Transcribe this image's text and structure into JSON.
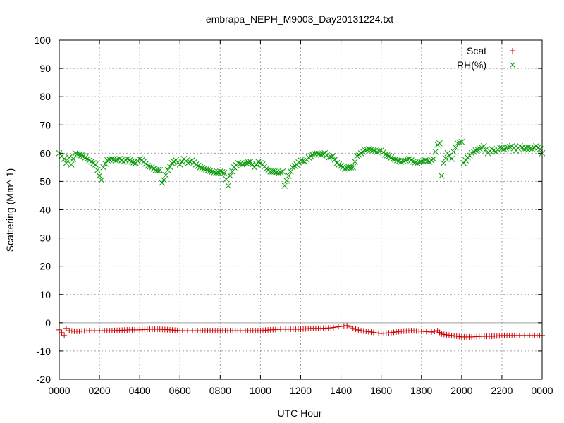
{
  "chart_data": {
    "type": "scatter",
    "title": "embrapa_NEPH_M9003_Day20131224.txt",
    "xlabel": "UTC Hour",
    "ylabel": "Scattering (Mm^-1)",
    "xlim": [
      0,
      24
    ],
    "ylim": [
      -20,
      100
    ],
    "x_unit": "hours",
    "xticks": [
      {
        "value": 0,
        "label": "0000"
      },
      {
        "value": 2,
        "label": "0200"
      },
      {
        "value": 4,
        "label": "0400"
      },
      {
        "value": 6,
        "label": "0600"
      },
      {
        "value": 8,
        "label": "0800"
      },
      {
        "value": 10,
        "label": "1000"
      },
      {
        "value": 12,
        "label": "1200"
      },
      {
        "value": 14,
        "label": "1400"
      },
      {
        "value": 16,
        "label": "1600"
      },
      {
        "value": 18,
        "label": "1800"
      },
      {
        "value": 20,
        "label": "2000"
      },
      {
        "value": 22,
        "label": "2200"
      },
      {
        "value": 24,
        "label": "0000"
      }
    ],
    "yticks": [
      {
        "value": -20,
        "label": "-20"
      },
      {
        "value": -10,
        "label": "-10"
      },
      {
        "value": 0,
        "label": "0"
      },
      {
        "value": 10,
        "label": "10"
      },
      {
        "value": 20,
        "label": "20"
      },
      {
        "value": 30,
        "label": "30"
      },
      {
        "value": 40,
        "label": "40"
      },
      {
        "value": 50,
        "label": "50"
      },
      {
        "value": 60,
        "label": "60"
      },
      {
        "value": 70,
        "label": "70"
      },
      {
        "value": 80,
        "label": "80"
      },
      {
        "value": 90,
        "label": "90"
      },
      {
        "value": 100,
        "label": "100"
      }
    ],
    "grid": true,
    "zero_line": true,
    "legend_position": "top-right",
    "series": [
      {
        "name": "Scat",
        "marker": "plus",
        "color": "#cc0000",
        "points": [
          [
            0.0,
            -2.5
          ],
          [
            0.25,
            -4.5
          ],
          [
            0.35,
            -2.0
          ],
          [
            0.5,
            -2.8
          ],
          [
            0.75,
            -3.0
          ],
          [
            1.0,
            -3.0
          ],
          [
            1.5,
            -2.8
          ],
          [
            2.0,
            -2.8
          ],
          [
            2.5,
            -2.8
          ],
          [
            3.0,
            -2.7
          ],
          [
            3.5,
            -2.5
          ],
          [
            4.0,
            -2.5
          ],
          [
            4.5,
            -2.3
          ],
          [
            5.0,
            -2.3
          ],
          [
            5.5,
            -2.5
          ],
          [
            6.0,
            -2.8
          ],
          [
            6.5,
            -2.8
          ],
          [
            7.0,
            -2.8
          ],
          [
            7.5,
            -2.8
          ],
          [
            8.0,
            -2.8
          ],
          [
            8.5,
            -2.8
          ],
          [
            9.0,
            -2.8
          ],
          [
            9.5,
            -2.8
          ],
          [
            10.0,
            -2.8
          ],
          [
            10.5,
            -2.5
          ],
          [
            11.0,
            -2.3
          ],
          [
            11.5,
            -2.3
          ],
          [
            12.0,
            -2.3
          ],
          [
            12.5,
            -2.0
          ],
          [
            13.0,
            -2.0
          ],
          [
            13.5,
            -1.8
          ],
          [
            14.0,
            -1.3
          ],
          [
            14.3,
            -1.0
          ],
          [
            14.6,
            -2.0
          ],
          [
            15.0,
            -2.8
          ],
          [
            15.5,
            -3.3
          ],
          [
            16.0,
            -3.8
          ],
          [
            16.5,
            -3.5
          ],
          [
            17.0,
            -3.0
          ],
          [
            17.5,
            -2.8
          ],
          [
            18.0,
            -3.0
          ],
          [
            18.5,
            -3.3
          ],
          [
            18.8,
            -2.8
          ],
          [
            19.0,
            -4.0
          ],
          [
            19.5,
            -4.5
          ],
          [
            20.0,
            -5.0
          ],
          [
            20.5,
            -5.0
          ],
          [
            21.0,
            -4.8
          ],
          [
            21.5,
            -4.8
          ],
          [
            22.0,
            -4.5
          ],
          [
            22.5,
            -4.5
          ],
          [
            23.0,
            -4.5
          ],
          [
            23.5,
            -4.5
          ],
          [
            24.0,
            -4.5
          ]
        ]
      },
      {
        "name": "RH(%)",
        "marker": "cross",
        "color": "#009900",
        "points": [
          [
            0.0,
            60.0
          ],
          [
            0.25,
            58.0
          ],
          [
            0.35,
            56.5
          ],
          [
            0.5,
            58.5
          ],
          [
            0.6,
            56.0
          ],
          [
            0.8,
            60.0
          ],
          [
            1.0,
            59.5
          ],
          [
            1.2,
            59.0
          ],
          [
            1.4,
            58.0
          ],
          [
            1.6,
            57.0
          ],
          [
            1.8,
            56.0
          ],
          [
            2.0,
            52.0
          ],
          [
            2.1,
            50.5
          ],
          [
            2.2,
            55.0
          ],
          [
            2.4,
            57.5
          ],
          [
            2.6,
            58.0
          ],
          [
            2.8,
            57.5
          ],
          [
            3.0,
            58.0
          ],
          [
            3.2,
            57.0
          ],
          [
            3.4,
            58.0
          ],
          [
            3.6,
            57.0
          ],
          [
            3.8,
            56.5
          ],
          [
            4.0,
            58.0
          ],
          [
            4.2,
            57.0
          ],
          [
            4.4,
            55.5
          ],
          [
            4.6,
            55.0
          ],
          [
            4.8,
            54.0
          ],
          [
            5.0,
            54.0
          ],
          [
            5.1,
            49.5
          ],
          [
            5.2,
            50.5
          ],
          [
            5.4,
            54.0
          ],
          [
            5.6,
            56.5
          ],
          [
            5.8,
            57.5
          ],
          [
            6.0,
            56.0
          ],
          [
            6.2,
            58.0
          ],
          [
            6.4,
            56.5
          ],
          [
            6.6,
            57.5
          ],
          [
            6.8,
            56.0
          ],
          [
            7.0,
            55.0
          ],
          [
            7.2,
            54.5
          ],
          [
            7.4,
            54.0
          ],
          [
            7.6,
            53.5
          ],
          [
            7.8,
            53.0
          ],
          [
            8.0,
            53.5
          ],
          [
            8.2,
            53.0
          ],
          [
            8.4,
            48.5
          ],
          [
            8.5,
            52.0
          ],
          [
            8.7,
            55.0
          ],
          [
            8.9,
            56.5
          ],
          [
            9.1,
            56.0
          ],
          [
            9.3,
            56.5
          ],
          [
            9.5,
            57.0
          ],
          [
            9.7,
            55.0
          ],
          [
            9.9,
            57.0
          ],
          [
            10.1,
            56.0
          ],
          [
            10.3,
            54.5
          ],
          [
            10.5,
            53.5
          ],
          [
            10.7,
            53.5
          ],
          [
            10.9,
            53.0
          ],
          [
            11.1,
            53.5
          ],
          [
            11.2,
            48.5
          ],
          [
            11.4,
            52.0
          ],
          [
            11.6,
            55.0
          ],
          [
            11.8,
            56.0
          ],
          [
            12.0,
            57.5
          ],
          [
            12.2,
            57.0
          ],
          [
            12.4,
            58.5
          ],
          [
            12.6,
            59.5
          ],
          [
            12.8,
            60.0
          ],
          [
            13.0,
            59.5
          ],
          [
            13.2,
            60.0
          ],
          [
            13.4,
            58.5
          ],
          [
            13.6,
            59.0
          ],
          [
            13.8,
            56.5
          ],
          [
            14.0,
            55.5
          ],
          [
            14.2,
            54.5
          ],
          [
            14.4,
            55.0
          ],
          [
            14.6,
            55.0
          ],
          [
            14.8,
            59.0
          ],
          [
            15.0,
            60.0
          ],
          [
            15.2,
            61.0
          ],
          [
            15.4,
            61.5
          ],
          [
            15.6,
            61.0
          ],
          [
            15.8,
            60.5
          ],
          [
            16.0,
            61.0
          ],
          [
            16.2,
            59.5
          ],
          [
            16.4,
            59.0
          ],
          [
            16.6,
            58.0
          ],
          [
            16.8,
            57.5
          ],
          [
            17.0,
            57.0
          ],
          [
            17.2,
            57.5
          ],
          [
            17.4,
            58.0
          ],
          [
            17.6,
            57.0
          ],
          [
            17.8,
            56.5
          ],
          [
            18.0,
            57.0
          ],
          [
            18.2,
            57.5
          ],
          [
            18.4,
            57.0
          ],
          [
            18.6,
            58.0
          ],
          [
            18.8,
            63.0
          ],
          [
            18.9,
            63.5
          ],
          [
            19.0,
            52.0
          ],
          [
            19.1,
            56.5
          ],
          [
            19.3,
            60.0
          ],
          [
            19.5,
            58.0
          ],
          [
            19.6,
            60.5
          ],
          [
            19.8,
            63.5
          ],
          [
            20.0,
            64.0
          ],
          [
            20.1,
            56.5
          ],
          [
            20.3,
            58.5
          ],
          [
            20.5,
            60.0
          ],
          [
            20.7,
            61.0
          ],
          [
            20.9,
            61.5
          ],
          [
            21.1,
            62.5
          ],
          [
            21.3,
            60.0
          ],
          [
            21.5,
            61.5
          ],
          [
            21.7,
            60.5
          ],
          [
            21.9,
            62.0
          ],
          [
            22.1,
            61.5
          ],
          [
            22.3,
            62.0
          ],
          [
            22.5,
            62.5
          ],
          [
            22.7,
            61.0
          ],
          [
            22.9,
            62.5
          ],
          [
            23.1,
            61.5
          ],
          [
            23.3,
            62.0
          ],
          [
            23.5,
            61.5
          ],
          [
            23.7,
            62.5
          ],
          [
            23.9,
            61.5
          ],
          [
            24.0,
            60.0
          ]
        ]
      }
    ]
  }
}
